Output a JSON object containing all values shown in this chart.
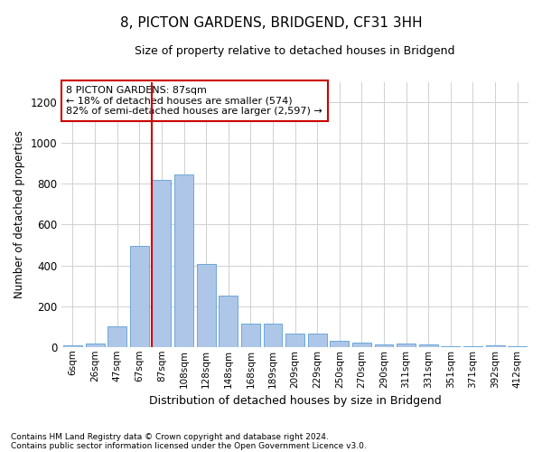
{
  "title": "8, PICTON GARDENS, BRIDGEND, CF31 3HH",
  "subtitle": "Size of property relative to detached houses in Bridgend",
  "xlabel": "Distribution of detached houses by size in Bridgend",
  "ylabel": "Number of detached properties",
  "categories": [
    "6sqm",
    "26sqm",
    "47sqm",
    "67sqm",
    "87sqm",
    "108sqm",
    "128sqm",
    "148sqm",
    "168sqm",
    "189sqm",
    "209sqm",
    "229sqm",
    "250sqm",
    "270sqm",
    "290sqm",
    "311sqm",
    "331sqm",
    "351sqm",
    "371sqm",
    "392sqm",
    "412sqm"
  ],
  "values": [
    10,
    15,
    100,
    495,
    820,
    845,
    405,
    250,
    115,
    115,
    65,
    65,
    30,
    22,
    12,
    15,
    12,
    5,
    5,
    10,
    5
  ],
  "bar_color": "#aec6e8",
  "bar_edgecolor": "#5a9fd4",
  "vline_color": "#cc0000",
  "vline_index": 4,
  "annotation_text": "8 PICTON GARDENS: 87sqm\n← 18% of detached houses are smaller (574)\n82% of semi-detached houses are larger (2,597) →",
  "annotation_box_color": "#cc0000",
  "ylim": [
    0,
    1300
  ],
  "yticks": [
    0,
    200,
    400,
    600,
    800,
    1000,
    1200
  ],
  "footnote1": "Contains HM Land Registry data © Crown copyright and database right 2024.",
  "footnote2": "Contains public sector information licensed under the Open Government Licence v3.0.",
  "background_color": "#ffffff",
  "grid_color": "#d0d0d0"
}
